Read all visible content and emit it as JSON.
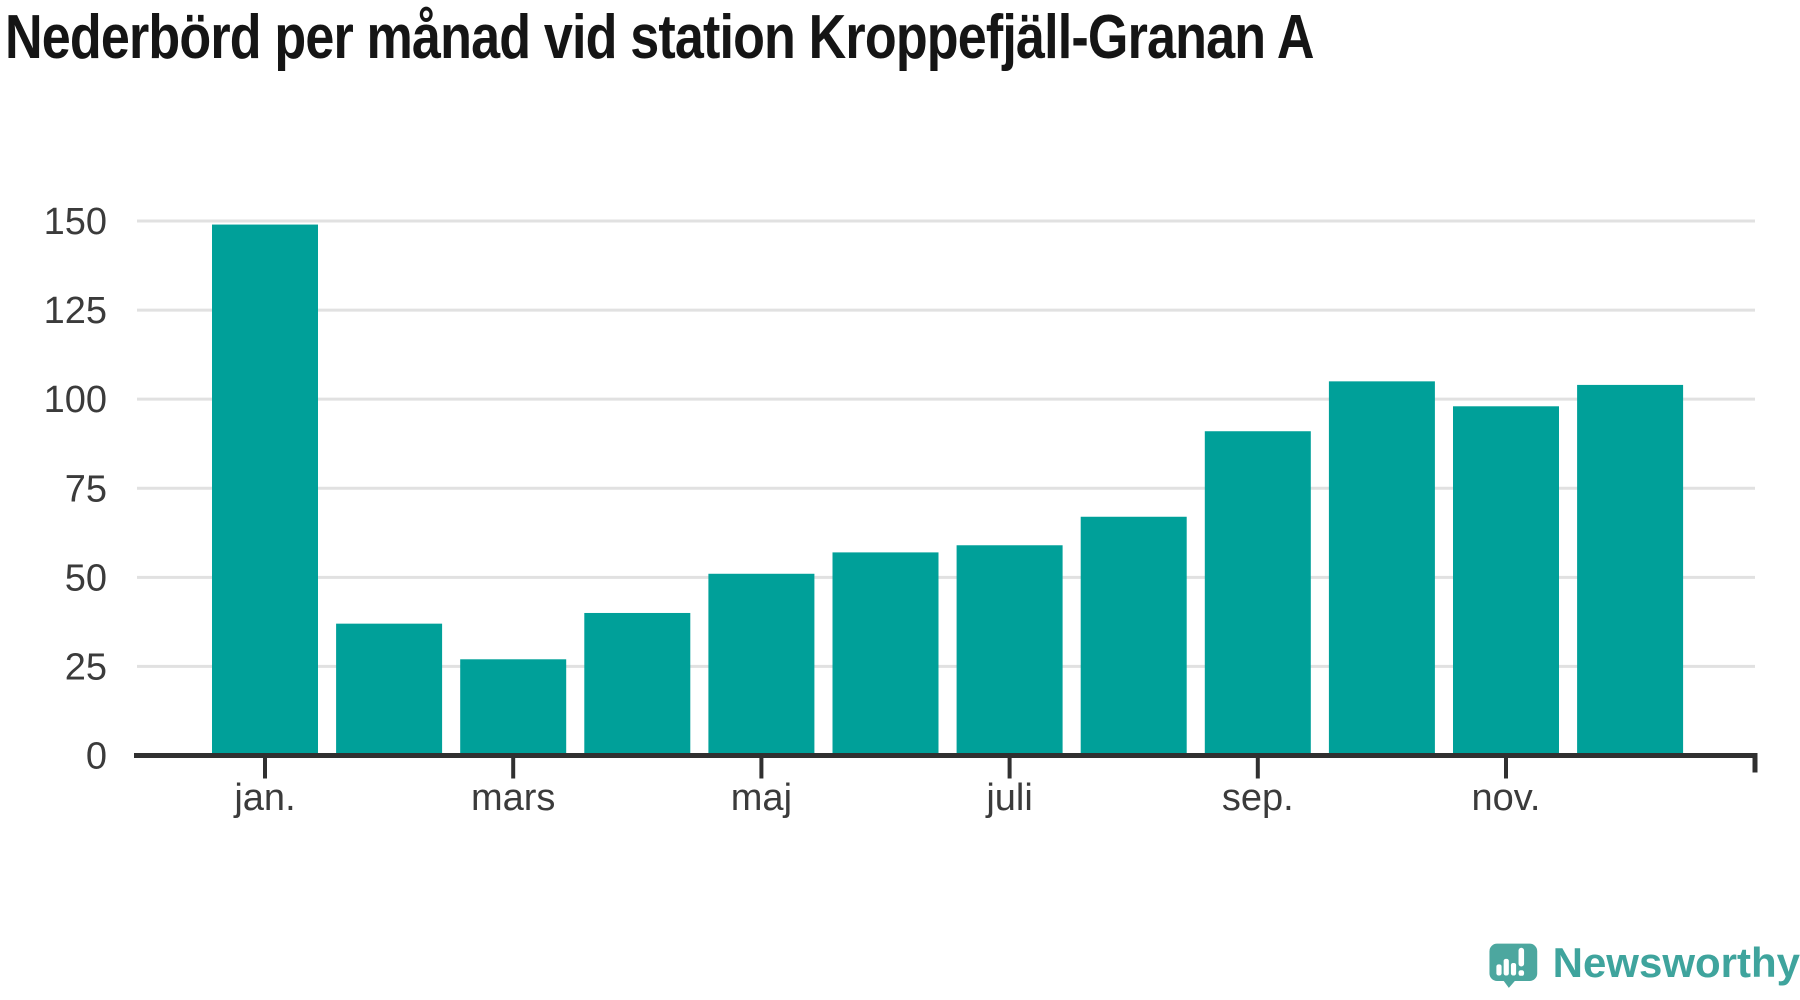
{
  "title": "Nederbörd per månad vid station Kroppefjäll-Granan A",
  "chart_data": {
    "type": "bar",
    "n_bars": 12,
    "values": [
      149,
      37,
      27,
      40,
      51,
      57,
      59,
      67,
      91,
      105,
      98,
      104
    ],
    "title": "Nederbörd per månad vid station Kroppefjäll-Granan A",
    "xlabel": "",
    "ylabel": "",
    "ylim": [
      0,
      150
    ],
    "yticks": [
      0,
      25,
      50,
      75,
      100,
      125,
      150
    ],
    "ytick_labels": [
      "0",
      "25",
      "50",
      "75",
      "100",
      "125",
      "150"
    ],
    "xticks": [
      {
        "index": 0,
        "label": "jan."
      },
      {
        "index": 2,
        "label": "mars"
      },
      {
        "index": 4,
        "label": "maj"
      },
      {
        "index": 6,
        "label": "juli"
      },
      {
        "index": 8,
        "label": "sep."
      },
      {
        "index": 10,
        "label": "nov."
      }
    ],
    "grid": "horizontal gridlines on",
    "legend": "none"
  },
  "colors": {
    "bar": "#00A099",
    "grid": "#E1E1E1",
    "axis": "#303030",
    "tick_text": "#3B3B3B",
    "title_text": "#151515",
    "logo_bubble": "#4CA79F",
    "logo_mark": "#FFFFFF",
    "logo_text": "#3FA49D",
    "background": "#FFFFFF"
  },
  "logo": {
    "brand": "Newsworthy"
  }
}
